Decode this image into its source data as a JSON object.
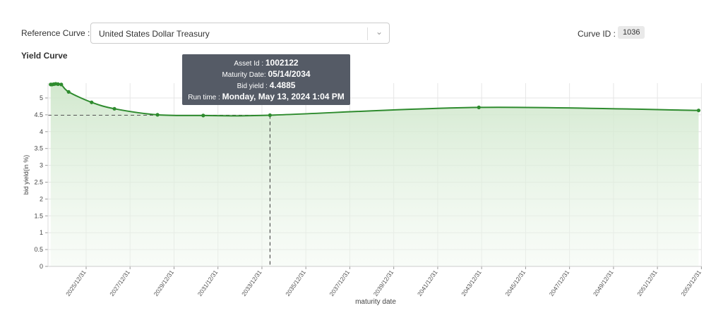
{
  "header": {
    "reference_label": "Reference Curve :",
    "reference_value": "United States Dollar Treasury",
    "curve_id_label": "Curve ID :",
    "curve_id_value": "1036"
  },
  "tooltip": {
    "asset_label": "Asset Id : ",
    "asset_value": "1002122",
    "maturity_label": "Maturity Date: ",
    "maturity_value": "05/14/2034",
    "yield_label": "Bid yield : ",
    "yield_value": "4.4885",
    "run_label": "Run time : ",
    "run_value": "Monday, May 13, 2024 1:04 PM"
  },
  "chart_data": {
    "type": "area",
    "title": "Yield Curve",
    "xlabel": "maturity date",
    "ylabel": "bid yield(in %)",
    "ylim": [
      0,
      5.45
    ],
    "yticks": [
      "0",
      "0.5",
      "1",
      "1.5",
      "2",
      "2.5",
      "3",
      "3.5",
      "4",
      "4.5",
      "5"
    ],
    "xticks": [
      "2025/12/31",
      "2027/12/31",
      "2029/12/31",
      "2031/12/31",
      "2033/12/31",
      "2035/12/31",
      "2037/12/31",
      "2039/12/31",
      "2041/12/31",
      "2043/12/31",
      "2045/12/31",
      "2047/12/31",
      "2049/12/31",
      "2051/12/31",
      "2053/12/31"
    ],
    "grid": true,
    "line_color": "#2e8b2e",
    "fill_color": "#d6ebd3",
    "highlight": {
      "date": "2034-05-14",
      "value": 4.4885
    },
    "points": [
      {
        "date": "2024-05-20",
        "value": 5.4
      },
      {
        "date": "2024-06-13",
        "value": 5.4
      },
      {
        "date": "2024-07-13",
        "value": 5.41
      },
      {
        "date": "2024-08-13",
        "value": 5.42
      },
      {
        "date": "2024-09-20",
        "value": 5.41
      },
      {
        "date": "2024-11-13",
        "value": 5.4
      },
      {
        "date": "2025-03-15",
        "value": 5.18
      },
      {
        "date": "2026-04-01",
        "value": 4.87
      },
      {
        "date": "2027-04-15",
        "value": 4.68
      },
      {
        "date": "2029-03-31",
        "value": 4.5
      },
      {
        "date": "2031-04-30",
        "value": 4.48
      },
      {
        "date": "2034-05-14",
        "value": 4.4885
      },
      {
        "date": "2043-11-15",
        "value": 4.72
      },
      {
        "date": "2053-11-15",
        "value": 4.63
      }
    ]
  }
}
